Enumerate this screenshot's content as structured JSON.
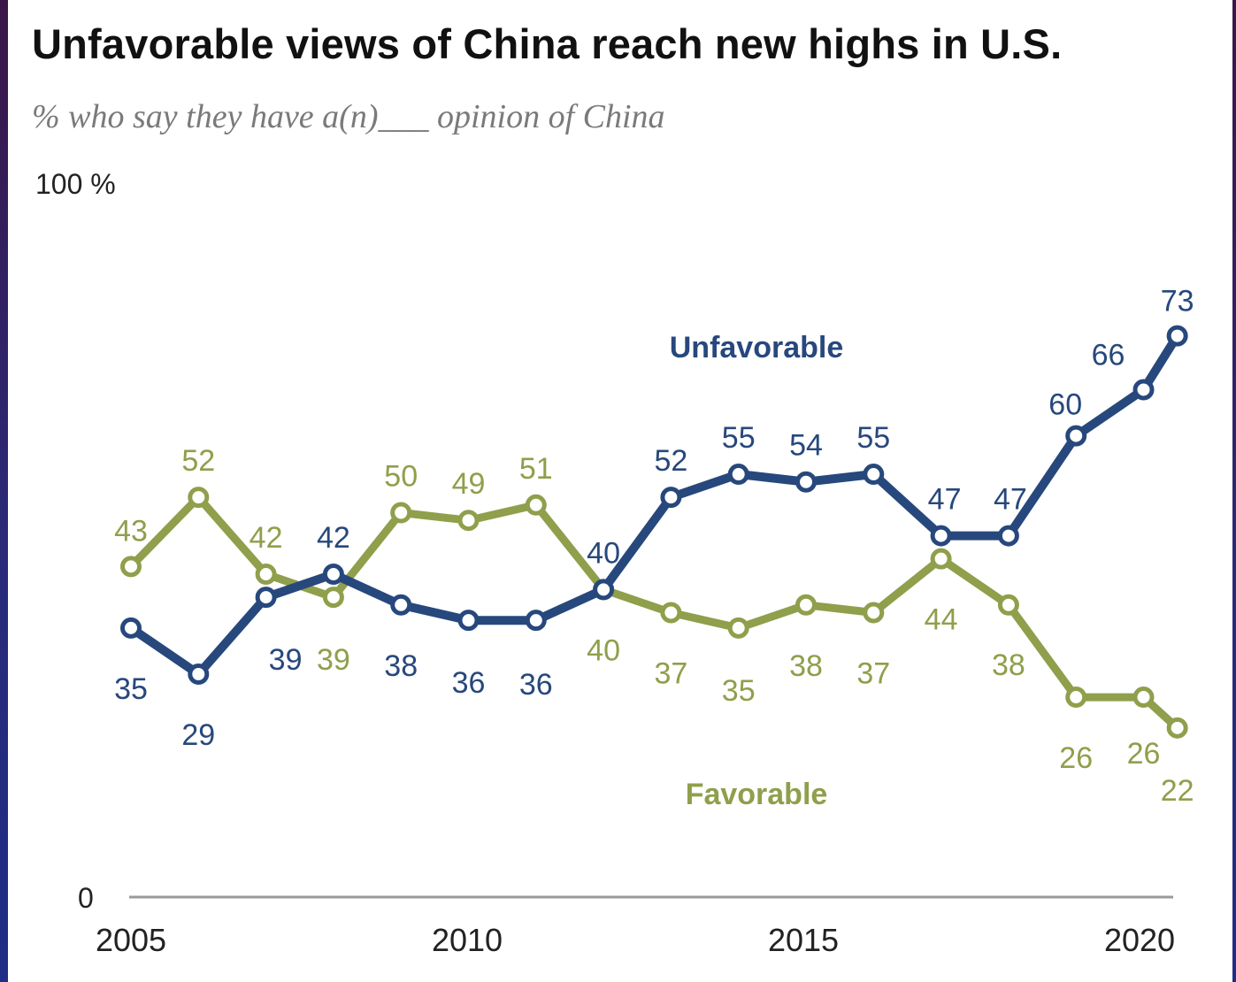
{
  "chart_data": {
    "type": "line",
    "title": "Unfavorable views of China reach new highs in U.S.",
    "subtitle": "% who say they have a(n)___ opinion of China",
    "ylim": [
      0,
      100
    ],
    "y_ticks": [
      {
        "value": 100,
        "label": "100 %"
      },
      {
        "value": 0,
        "label": "0"
      }
    ],
    "x": [
      2005,
      2006,
      2007,
      2008,
      2009,
      2010,
      2011,
      2012,
      2013,
      2014,
      2015,
      2016,
      2017,
      2018,
      2019,
      2020.5
    ],
    "x_ticks": [
      "2005",
      "2010",
      "2015",
      "2020"
    ],
    "grid": false,
    "series": [
      {
        "name": "Unfavorable",
        "color": "#27487c",
        "values": [
          35,
          29,
          39,
          42,
          38,
          36,
          36,
          40,
          52,
          55,
          54,
          55,
          47,
          47,
          60,
          66,
          73
        ],
        "x": [
          2005,
          2006,
          2007,
          2008,
          2009,
          2010,
          2011,
          2012,
          2013,
          2014,
          2015,
          2016,
          2017,
          2018,
          2019,
          2020,
          2020.5
        ]
      },
      {
        "name": "Favorable",
        "color": "#8f9f4b",
        "values": [
          43,
          52,
          42,
          39,
          50,
          49,
          51,
          40,
          37,
          35,
          38,
          37,
          44,
          38,
          26,
          26,
          22
        ],
        "x": [
          2005,
          2006,
          2007,
          2008,
          2009,
          2010,
          2011,
          2012,
          2013,
          2014,
          2015,
          2016,
          2017,
          2018,
          2019,
          2020,
          2020.5
        ]
      }
    ]
  }
}
